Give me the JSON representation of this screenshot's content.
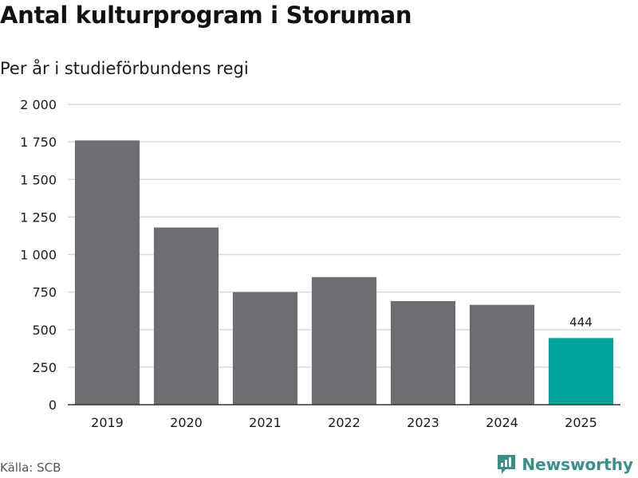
{
  "header": {
    "title": "Antal kulturprogram i Storuman",
    "subtitle": "Per år i studieförbundens regi"
  },
  "footer": {
    "source": "Källa: SCB",
    "brand": "Newsworthy"
  },
  "colors": {
    "bar": "#6e6d72",
    "highlight": "#00a39a",
    "grid": "#d9d9d9",
    "axis": "#333333",
    "brand": "#3a8f8a"
  },
  "chart_data": {
    "type": "bar",
    "categories": [
      "2019",
      "2020",
      "2021",
      "2022",
      "2023",
      "2024",
      "2025"
    ],
    "values": [
      1760,
      1180,
      750,
      850,
      690,
      665,
      444
    ],
    "highlight_index": 6,
    "data_labels": [
      {
        "index": 6,
        "text": "444"
      }
    ],
    "yticks": [
      0,
      250,
      500,
      750,
      1000,
      1250,
      1500,
      1750,
      2000
    ],
    "ytick_labels": [
      "0",
      "250",
      "500",
      "750",
      "1 000",
      "1 250",
      "1 500",
      "1 750",
      "2 000"
    ],
    "ylim": [
      0,
      2000
    ],
    "grid": true,
    "legend": "none"
  }
}
